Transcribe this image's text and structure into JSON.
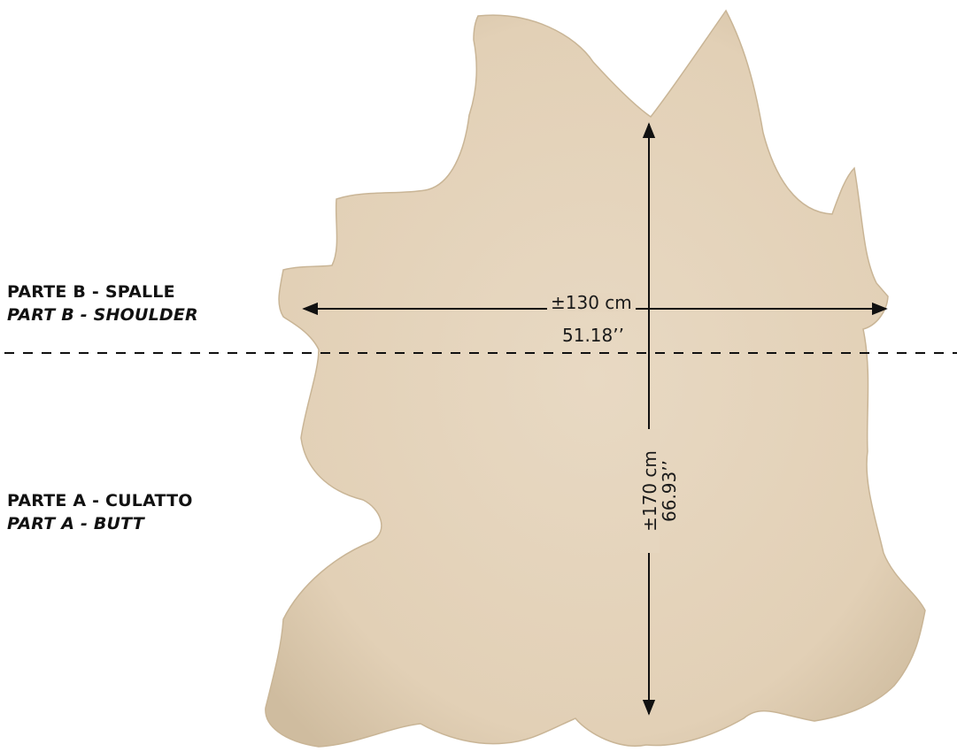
{
  "labels": {
    "part_b_it": "PARTE B - SPALLE",
    "part_b_en": "PART B - SHOULDER",
    "part_a_it": "PARTE A - CULATTO",
    "part_a_en": "PART A - BUTT"
  },
  "dimensions": {
    "width_cm": "±130 cm",
    "width_in": "51.18’’",
    "height_cm": "±170 cm",
    "height_in": "66.93’’"
  },
  "colors": {
    "hide": "#e3d2b8",
    "hide_shade": "#cdb99c",
    "line": "#111111"
  }
}
